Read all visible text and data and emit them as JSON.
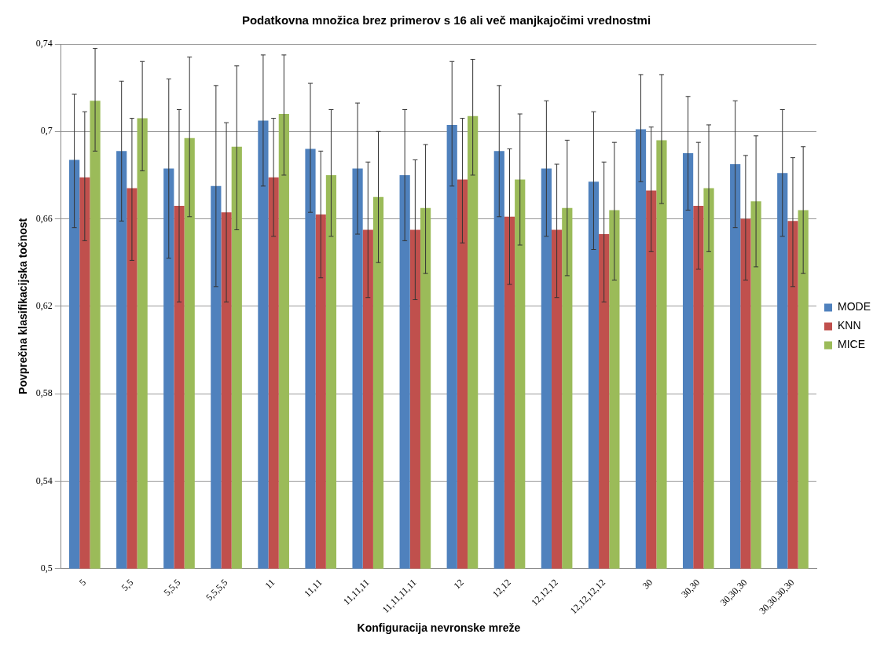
{
  "chart_data": {
    "type": "bar",
    "title": "Podatkovna množica brez primerov s 16 ali več manjkajočimi vrednostmi",
    "xlabel": "Konfiguracija nevronske mreže",
    "ylabel": "Povprečna klasifikacijska točnost",
    "categories": [
      "5",
      "5,5",
      "5,5,5",
      "5,5,5,5",
      "11",
      "11,11",
      "11,11,11",
      "11,11,11,11",
      "12",
      "12,12",
      "12,12,12",
      "12,12,12,12",
      "30",
      "30,30",
      "30,30,30",
      "30,30,30,30"
    ],
    "series": [
      {
        "name": "MODE",
        "color": "#4f81bd",
        "values": [
          0.687,
          0.691,
          0.683,
          0.675,
          0.705,
          0.692,
          0.683,
          0.68,
          0.703,
          0.691,
          0.683,
          0.677,
          0.701,
          0.69,
          0.685,
          0.681
        ],
        "errors": [
          [
            0.656,
            0.717
          ],
          [
            0.659,
            0.723
          ],
          [
            0.642,
            0.724
          ],
          [
            0.629,
            0.721
          ],
          [
            0.675,
            0.735
          ],
          [
            0.663,
            0.722
          ],
          [
            0.653,
            0.713
          ],
          [
            0.65,
            0.71
          ],
          [
            0.675,
            0.732
          ],
          [
            0.661,
            0.721
          ],
          [
            0.652,
            0.714
          ],
          [
            0.646,
            0.709
          ],
          [
            0.677,
            0.726
          ],
          [
            0.664,
            0.716
          ],
          [
            0.656,
            0.714
          ],
          [
            0.652,
            0.71
          ]
        ]
      },
      {
        "name": "KNN",
        "color": "#c0504d",
        "values": [
          0.679,
          0.674,
          0.666,
          0.663,
          0.679,
          0.662,
          0.655,
          0.655,
          0.678,
          0.661,
          0.655,
          0.653,
          0.673,
          0.666,
          0.66,
          0.659
        ],
        "errors": [
          [
            0.65,
            0.709
          ],
          [
            0.641,
            0.706
          ],
          [
            0.622,
            0.71
          ],
          [
            0.622,
            0.704
          ],
          [
            0.652,
            0.706
          ],
          [
            0.633,
            0.691
          ],
          [
            0.624,
            0.686
          ],
          [
            0.623,
            0.687
          ],
          [
            0.649,
            0.706
          ],
          [
            0.63,
            0.692
          ],
          [
            0.624,
            0.685
          ],
          [
            0.622,
            0.686
          ],
          [
            0.645,
            0.702
          ],
          [
            0.637,
            0.695
          ],
          [
            0.632,
            0.689
          ],
          [
            0.629,
            0.688
          ]
        ]
      },
      {
        "name": "MICE",
        "color": "#9bbb59",
        "values": [
          0.714,
          0.706,
          0.697,
          0.693,
          0.708,
          0.68,
          0.67,
          0.665,
          0.707,
          0.678,
          0.665,
          0.664,
          0.696,
          0.674,
          0.668,
          0.664
        ],
        "errors": [
          [
            0.691,
            0.738
          ],
          [
            0.682,
            0.732
          ],
          [
            0.661,
            0.734
          ],
          [
            0.655,
            0.73
          ],
          [
            0.68,
            0.735
          ],
          [
            0.652,
            0.71
          ],
          [
            0.64,
            0.7
          ],
          [
            0.635,
            0.694
          ],
          [
            0.68,
            0.733
          ],
          [
            0.648,
            0.708
          ],
          [
            0.634,
            0.696
          ],
          [
            0.632,
            0.695
          ],
          [
            0.667,
            0.726
          ],
          [
            0.645,
            0.703
          ],
          [
            0.638,
            0.698
          ],
          [
            0.635,
            0.693
          ]
        ]
      }
    ],
    "ylim": [
      0.5,
      0.74
    ],
    "yticks": [
      {
        "value": 0.5,
        "label": "0,5"
      },
      {
        "value": 0.54,
        "label": "0,54"
      },
      {
        "value": 0.58,
        "label": "0,58"
      },
      {
        "value": 0.62,
        "label": "0,62"
      },
      {
        "value": 0.66,
        "label": "0,66"
      },
      {
        "value": 0.7,
        "label": "0,7"
      },
      {
        "value": 0.74,
        "label": "0,74"
      }
    ],
    "grid": "y",
    "legend": "right"
  }
}
